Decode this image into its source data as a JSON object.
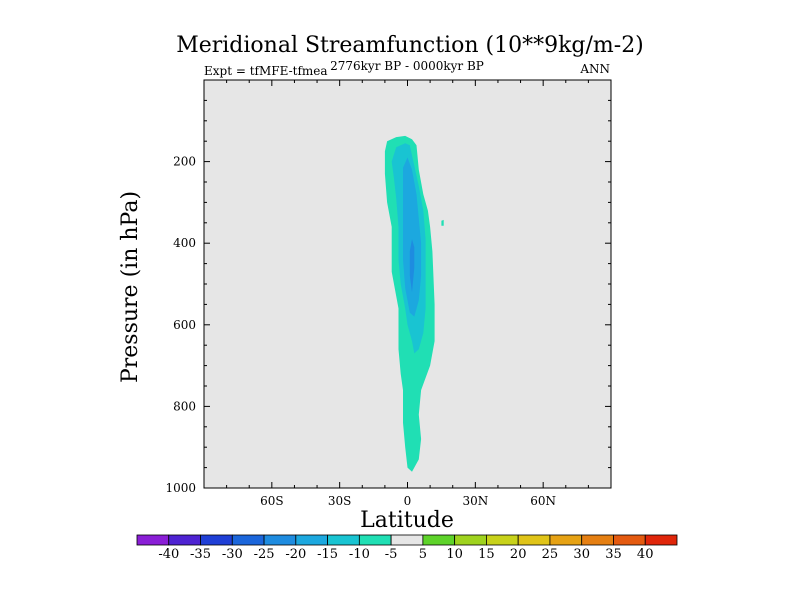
{
  "chart_data": {
    "type": "contour",
    "title": "Meridional Streamfunction (10**9kg/m-2)",
    "left_label": "Expt = tfMFE-tfmea",
    "center_label": "2776kyr BP - 0000kyr BP",
    "right_label": "ANN",
    "xlabel": "Latitude",
    "ylabel": "Pressure (in hPa)",
    "xlim": [
      -90,
      90
    ],
    "ylim": [
      1000,
      0
    ],
    "y_reversed": true,
    "xticks": [
      -60,
      -30,
      0,
      30,
      60
    ],
    "xtick_labels": [
      "60S",
      "30S",
      "0",
      "30N",
      "60N"
    ],
    "yticks": [
      200,
      400,
      600,
      800,
      1000
    ],
    "ytick_labels": [
      "200",
      "400",
      "600",
      "800",
      "1000"
    ],
    "background_color": "#e6e6e6",
    "contour_levels": [
      -40,
      -35,
      -30,
      -25,
      -20,
      -15,
      -10,
      -5,
      5,
      10,
      15,
      20,
      25,
      30,
      35,
      40
    ],
    "colorbar_colors": [
      "#8a1ed6",
      "#4e23d2",
      "#1f3fd6",
      "#1b66db",
      "#1e8ce0",
      "#1ca8df",
      "#19c4d2",
      "#20dfb4",
      "#e6e6e6",
      "#5ed32a",
      "#9fd31e",
      "#c8d21a",
      "#e0c418",
      "#e6a214",
      "#e57f12",
      "#e45a10",
      "#e0260a"
    ],
    "regions": [
      {
        "range": "-10 to -5",
        "color": "#20dfb4",
        "points": [
          [
            -10,
            175
          ],
          [
            -9,
            150
          ],
          [
            -5,
            140
          ],
          [
            -1,
            137
          ],
          [
            2,
            145
          ],
          [
            4,
            160
          ],
          [
            5,
            220
          ],
          [
            7,
            280
          ],
          [
            9,
            320
          ],
          [
            10,
            360
          ],
          [
            11,
            420
          ],
          [
            12,
            550
          ],
          [
            12,
            640
          ],
          [
            10,
            700
          ],
          [
            6,
            760
          ],
          [
            5,
            820
          ],
          [
            6,
            880
          ],
          [
            5,
            930
          ],
          [
            2,
            960
          ],
          [
            0,
            950
          ],
          [
            -1,
            900
          ],
          [
            -2,
            840
          ],
          [
            -2,
            760
          ],
          [
            -3,
            720
          ],
          [
            -4,
            660
          ],
          [
            -4,
            560
          ],
          [
            -7,
            470
          ],
          [
            -7,
            360
          ],
          [
            -9,
            300
          ],
          [
            -10,
            230
          ]
        ]
      },
      {
        "range": "-15 to -10",
        "color": "#19c4d2",
        "points": [
          [
            -7,
            200
          ],
          [
            -5,
            165
          ],
          [
            -1,
            155
          ],
          [
            1,
            160
          ],
          [
            3,
            210
          ],
          [
            5,
            260
          ],
          [
            7,
            320
          ],
          [
            8,
            390
          ],
          [
            8,
            480
          ],
          [
            8,
            560
          ],
          [
            7,
            620
          ],
          [
            5,
            660
          ],
          [
            3,
            670
          ],
          [
            2,
            640
          ],
          [
            0,
            600
          ],
          [
            -1,
            560
          ],
          [
            -3,
            500
          ],
          [
            -4,
            440
          ],
          [
            -4,
            360
          ],
          [
            -5,
            290
          ],
          [
            -6,
            240
          ]
        ]
      },
      {
        "range": "-20 to -15",
        "color": "#1ca8df",
        "points": [
          [
            -2,
            215
          ],
          [
            0,
            190
          ],
          [
            2,
            220
          ],
          [
            4,
            280
          ],
          [
            5,
            340
          ],
          [
            6,
            400
          ],
          [
            6,
            480
          ],
          [
            5,
            540
          ],
          [
            3,
            580
          ],
          [
            1,
            570
          ],
          [
            -1,
            510
          ],
          [
            -2,
            440
          ],
          [
            -2,
            360
          ],
          [
            -2,
            290
          ]
        ]
      },
      {
        "range": "-25 to -20",
        "color": "#1e8ce0",
        "points": [
          [
            2,
            390
          ],
          [
            3,
            410
          ],
          [
            3,
            460
          ],
          [
            2,
            520
          ],
          [
            1,
            480
          ],
          [
            1,
            420
          ]
        ]
      },
      {
        "range": "-10 to -5",
        "color": "#20dfb4",
        "points": [
          [
            15,
            345
          ],
          [
            16,
            343
          ],
          [
            16,
            357
          ],
          [
            15,
            357
          ]
        ]
      }
    ]
  }
}
